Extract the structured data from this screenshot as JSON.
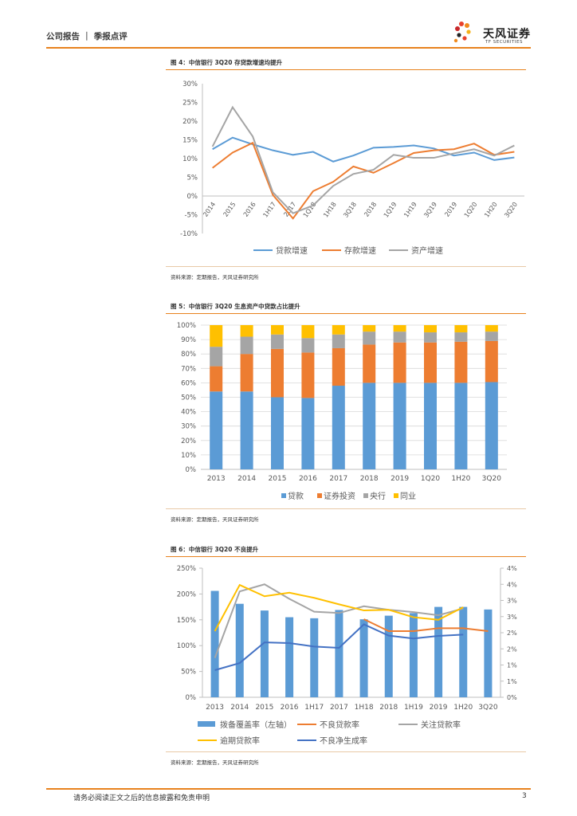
{
  "header": {
    "section": "公司报告 ｜ 季报点评",
    "logo_cn": "天风证券",
    "logo_en": "TF SECURITIES"
  },
  "fig4": {
    "title": "图 4：中信银行 3Q20 存贷款增速均提升",
    "source": "资料来源：定期报告，天风证券研究所",
    "chart_data": {
      "type": "line",
      "categories": [
        "2014",
        "2015",
        "2016",
        "1H17",
        "2017",
        "1Q18",
        "1H18",
        "3Q18",
        "2018",
        "1Q19",
        "1H19",
        "3Q19",
        "2019",
        "1Q20",
        "1H20",
        "3Q20"
      ],
      "ylim": [
        -10,
        30
      ],
      "yticks": [
        "-10%",
        "-5%",
        "0%",
        "5%",
        "10%",
        "15%",
        "20%",
        "25%",
        "30%"
      ],
      "series": [
        {
          "name": "贷款增速",
          "color": "#5b9bd5",
          "values": [
            12.5,
            15.6,
            13.8,
            12.2,
            11.0,
            11.8,
            9.2,
            10.8,
            12.9,
            13.1,
            13.5,
            12.7,
            10.8,
            11.6,
            9.6,
            10.3
          ]
        },
        {
          "name": "存款增速",
          "color": "#ed7d31",
          "values": [
            7.5,
            11.6,
            14.2,
            0.3,
            -6.0,
            1.3,
            3.8,
            7.9,
            6.2,
            8.8,
            11.5,
            12.2,
            12.5,
            14.0,
            11.0,
            11.8
          ]
        },
        {
          "name": "资产增速",
          "color": "#a5a5a5",
          "values": [
            13.2,
            23.7,
            15.9,
            1.0,
            -4.6,
            -2.5,
            2.7,
            5.9,
            7.0,
            11.0,
            10.2,
            10.2,
            11.4,
            12.5,
            10.8,
            13.5
          ]
        }
      ]
    }
  },
  "fig5": {
    "title": "图 5：中信银行 3Q20 生息资产中贷款占比提升",
    "source": "资料来源：定期报告，天风证券研究所",
    "chart_data": {
      "type": "bar",
      "stacked": true,
      "categories": [
        "2013",
        "2014",
        "2015",
        "2016",
        "2017",
        "2018",
        "2019",
        "1Q20",
        "1H20",
        "3Q20"
      ],
      "ylim": [
        0,
        100
      ],
      "yticks": [
        "0%",
        "10%",
        "20%",
        "30%",
        "40%",
        "50%",
        "60%",
        "70%",
        "80%",
        "90%",
        "100%"
      ],
      "series": [
        {
          "name": "贷款",
          "color": "#5b9bd5",
          "values": [
            54,
            54,
            50,
            49.5,
            58,
            60,
            60,
            60,
            60,
            60.5
          ]
        },
        {
          "name": "证券投资",
          "color": "#ed7d31",
          "values": [
            17.5,
            26,
            33.5,
            31.5,
            26,
            26.5,
            28,
            28,
            28.5,
            28.5
          ]
        },
        {
          "name": "央行",
          "color": "#a5a5a5",
          "values": [
            13.5,
            12,
            10,
            10,
            9.5,
            9,
            7.5,
            7,
            6.5,
            6.5
          ]
        },
        {
          "name": "同业",
          "color": "#ffc000",
          "values": [
            15,
            8,
            6.5,
            9,
            6.5,
            4.5,
            4.5,
            5,
            5,
            4.5
          ]
        }
      ]
    }
  },
  "fig6": {
    "title": "图 6：中信银行 3Q20 不良提升",
    "source": "资料来源：定期报告，天风证券研究所",
    "chart_data": {
      "type": "bar+line",
      "categories": [
        "2013",
        "2014",
        "2015",
        "2016",
        "1H17",
        "2017",
        "1H18",
        "2018",
        "1H19",
        "2019",
        "1H20",
        "3Q20"
      ],
      "ylim_left": [
        0,
        250
      ],
      "ylim_right": [
        0,
        4
      ],
      "yticks_left": [
        "0%",
        "50%",
        "100%",
        "150%",
        "200%",
        "250%"
      ],
      "yticks_right": [
        "0%",
        "1%",
        "1%",
        "2%",
        "2%",
        "3%",
        "3%",
        "4%",
        "4%"
      ],
      "series": [
        {
          "name": "拨备覆盖率（左轴）",
          "color": "#5b9bd5",
          "axis": "left",
          "type": "bar",
          "values": [
            206,
            181,
            168,
            155,
            153,
            169,
            151,
            158,
            163,
            175,
            175,
            170
          ]
        },
        {
          "name": "不良贷款率",
          "color": "#ed7d31",
          "axis": "right",
          "type": "line",
          "values": [
            null,
            null,
            null,
            null,
            null,
            null,
            2.42,
            2.05,
            2.05,
            2.14,
            2.14,
            2.05
          ]
        },
        {
          "name": "关注贷款率",
          "color": "#a5a5a5",
          "axis": "right",
          "type": "line",
          "values": [
            1.22,
            3.28,
            3.5,
            3.05,
            2.65,
            2.61,
            2.82,
            2.71,
            2.64,
            2.54,
            2.75,
            null
          ]
        },
        {
          "name": "逾期贷款率",
          "color": "#ffc000",
          "axis": "right",
          "type": "line",
          "values": [
            2.05,
            3.48,
            3.13,
            3.24,
            3.08,
            2.88,
            2.69,
            2.71,
            2.48,
            2.4,
            2.79,
            null
          ]
        },
        {
          "name": "不良净生成率",
          "color": "#4472c4",
          "axis": "right",
          "type": "line",
          "values": [
            0.84,
            1.06,
            1.7,
            1.68,
            1.57,
            1.53,
            2.26,
            1.91,
            1.82,
            1.9,
            1.94,
            null
          ]
        }
      ]
    }
  },
  "footer": {
    "disclaimer": "请务必阅读正文之后的信息披露和免责申明",
    "page": "3"
  }
}
